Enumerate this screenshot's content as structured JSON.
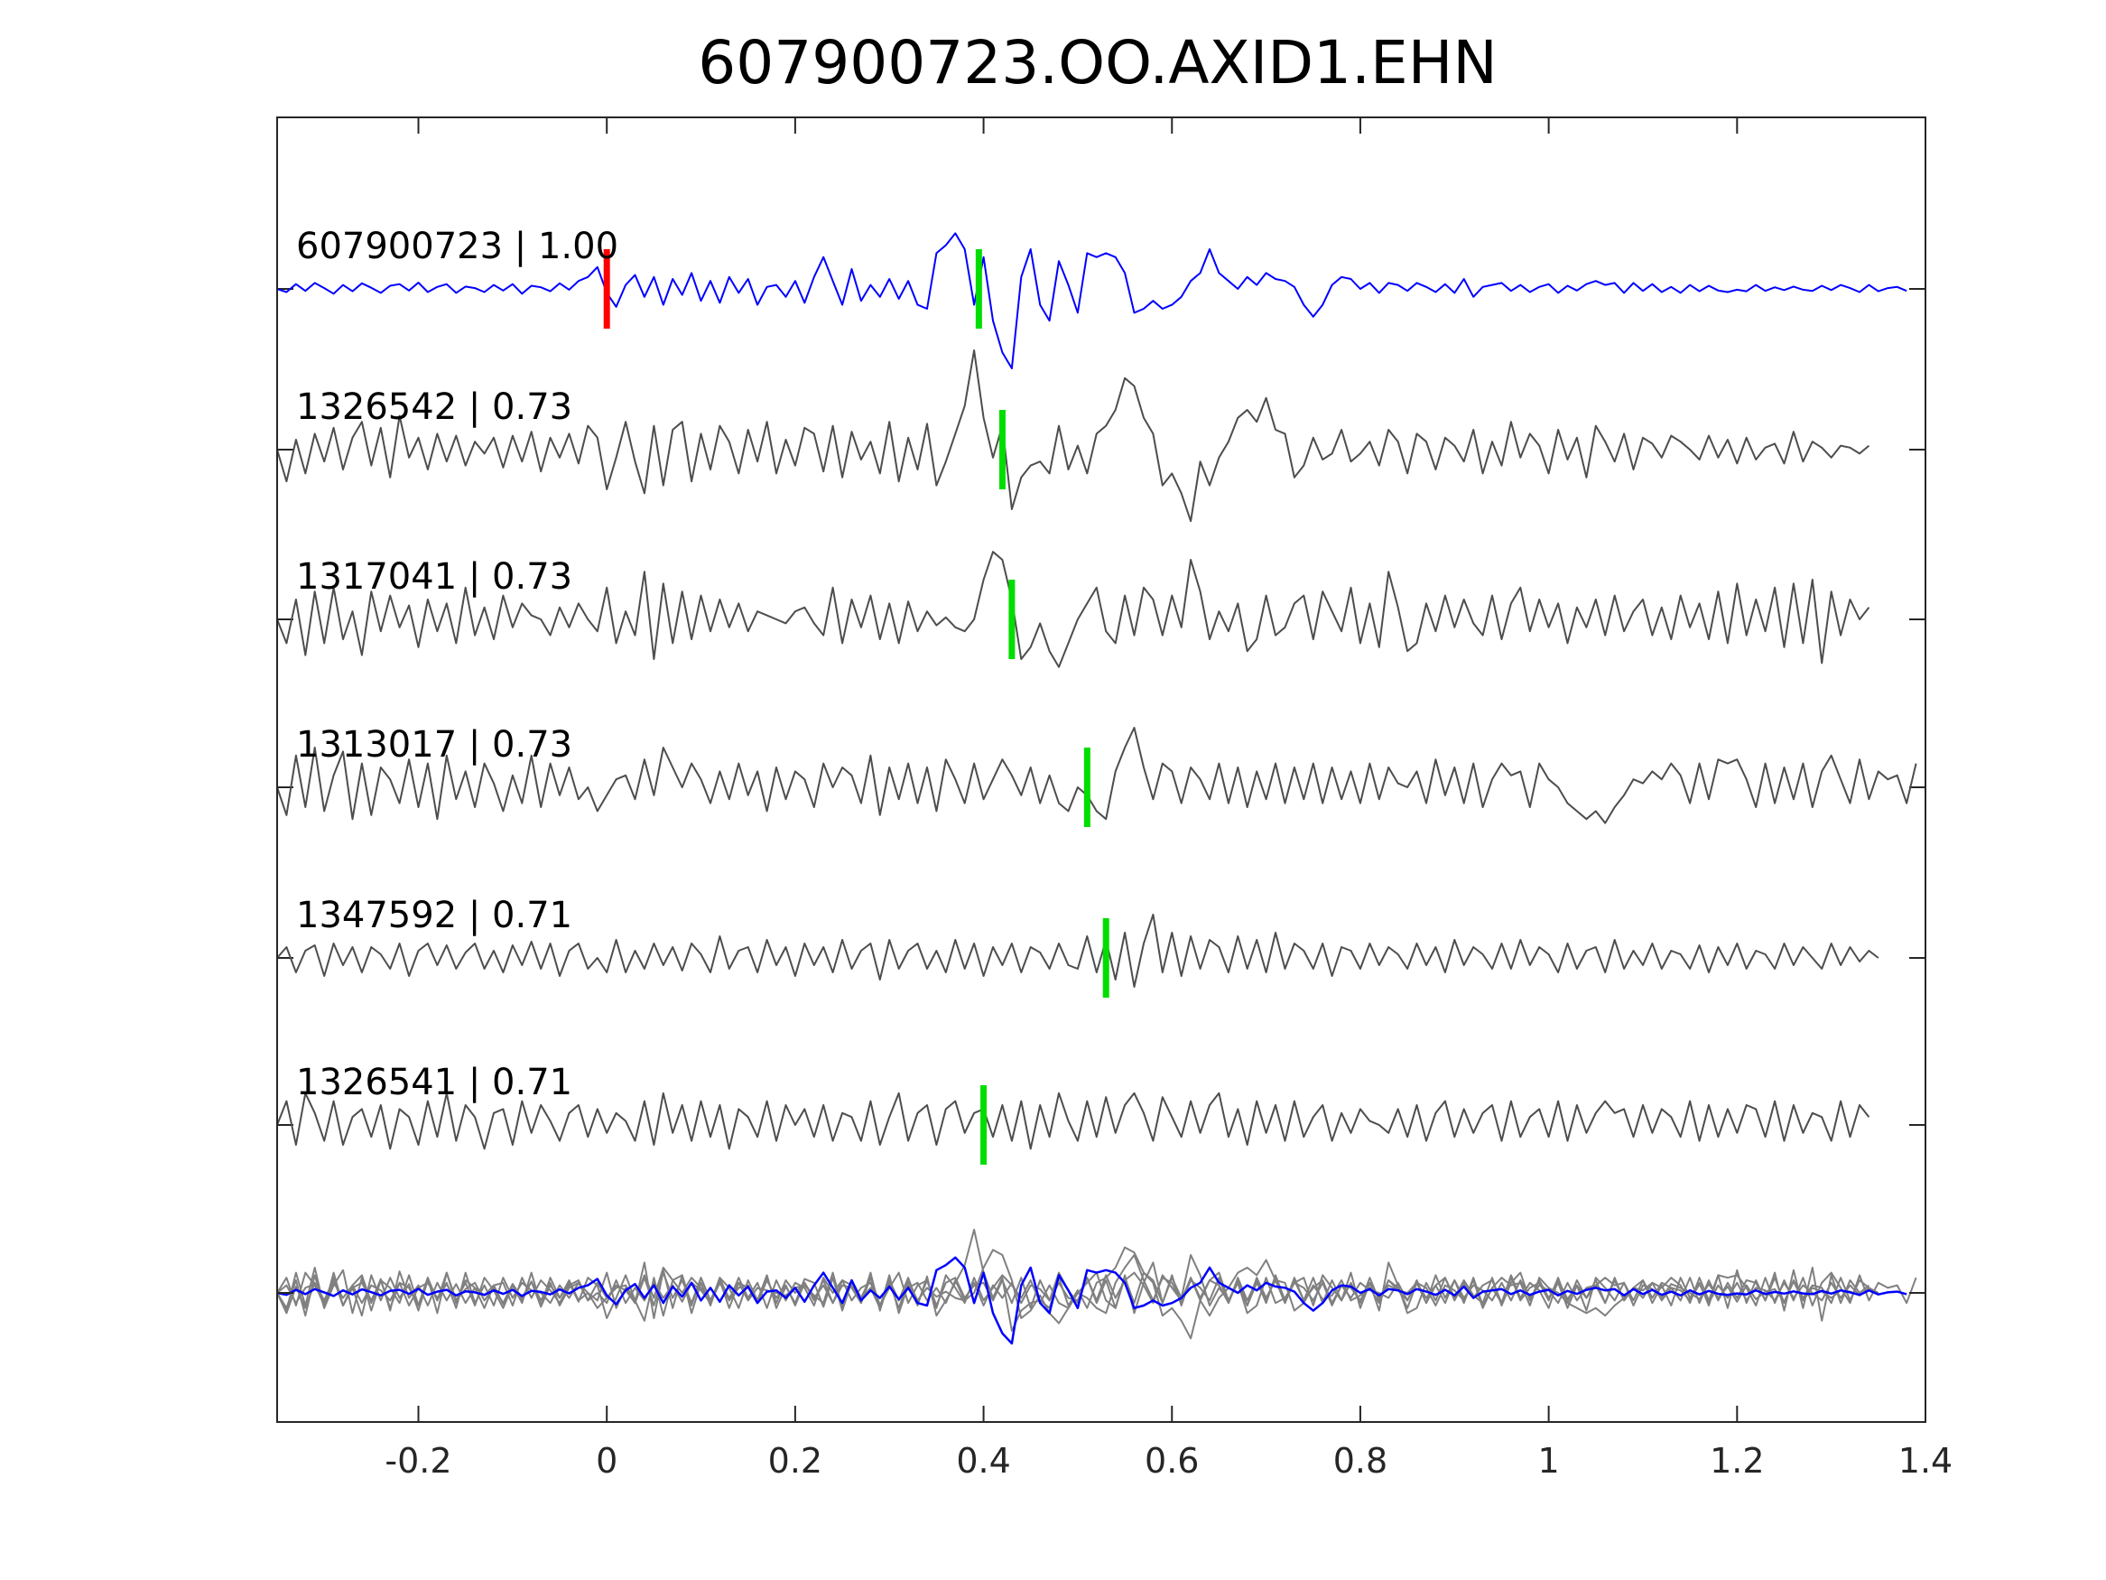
{
  "chart_data": {
    "type": "line",
    "title": "607900723.OO.AXID1.EHN",
    "xlabel": "",
    "ylabel": "",
    "xlim": [
      -0.35,
      1.4
    ],
    "x_ticks": [
      -0.2,
      0,
      0.2,
      0.4,
      0.6,
      0.8,
      1,
      1.2,
      1.4
    ],
    "x_tick_labels": [
      "-0.2",
      "0",
      "0.2",
      "0.4",
      "0.6",
      "0.8",
      "1",
      "1.2",
      "1.4"
    ],
    "grid": false,
    "legend": "none",
    "sampling_step": 0.01,
    "colors": {
      "master": "#0000ff",
      "trace": "#4d4d4d",
      "overlay": "#808080",
      "master_pick": "#ff0000",
      "match_pick": "#00dd00",
      "axes": "#262626"
    },
    "series": [
      {
        "label": "607900723 | 1.00",
        "pick_time": 0.0,
        "pick_color": "red",
        "values": [
          0.0,
          -0.08,
          0.12,
          -0.05,
          0.15,
          0.02,
          -0.12,
          0.1,
          -0.06,
          0.14,
          0.03,
          -0.1,
          0.08,
          0.12,
          -0.04,
          0.16,
          -0.08,
          0.05,
          0.12,
          -0.1,
          0.06,
          0.02,
          -0.08,
          0.1,
          -0.04,
          0.12,
          -0.12,
          0.08,
          0.04,
          -0.06,
          0.14,
          -0.02,
          0.2,
          0.3,
          0.55,
          -0.1,
          -0.45,
          0.1,
          0.35,
          -0.2,
          0.3,
          -0.4,
          0.25,
          -0.15,
          0.4,
          -0.3,
          0.2,
          -0.35,
          0.3,
          -0.1,
          0.25,
          -0.4,
          0.05,
          0.1,
          -0.2,
          0.2,
          -0.35,
          0.3,
          0.8,
          0.2,
          -0.4,
          0.5,
          -0.3,
          0.1,
          -0.2,
          0.25,
          -0.25,
          0.2,
          -0.4,
          -0.5,
          0.9,
          1.1,
          1.4,
          1.0,
          -0.4,
          0.8,
          -0.8,
          -1.6,
          -2.0,
          0.3,
          1.0,
          -0.4,
          -0.8,
          0.7,
          0.1,
          -0.6,
          0.9,
          0.8,
          0.9,
          0.8,
          0.4,
          -0.6,
          -0.5,
          -0.3,
          -0.5,
          -0.4,
          -0.2,
          0.2,
          0.4,
          1.0,
          0.4,
          0.2,
          0.0,
          0.3,
          0.1,
          0.4,
          0.25,
          0.2,
          0.05,
          -0.4,
          -0.7,
          -0.4,
          0.1,
          0.3,
          0.25,
          0.0,
          0.15,
          -0.1,
          0.15,
          0.1,
          -0.05,
          0.15,
          0.05,
          -0.08,
          0.12,
          -0.1,
          0.25,
          -0.2,
          0.05,
          0.1,
          0.15,
          -0.05,
          0.1,
          -0.08,
          0.05,
          0.12,
          -0.1,
          0.08,
          -0.04,
          0.12,
          0.2,
          0.1,
          0.15,
          -0.1,
          0.15,
          -0.05,
          0.12,
          -0.08,
          0.05,
          -0.1,
          0.1,
          -0.06,
          0.08,
          -0.04,
          -0.08,
          -0.02,
          -0.06,
          0.1,
          -0.05,
          0.04,
          -0.03,
          0.06,
          -0.02,
          -0.05,
          0.08,
          -0.03,
          0.1,
          0.02,
          -0.08,
          0.1,
          -0.06,
          0.02,
          0.05,
          -0.05
        ]
      },
      {
        "label": "1326542 | 0.73",
        "pick_time": 0.42,
        "pick_color": "green",
        "values": [
          0.0,
          -0.8,
          0.25,
          -0.6,
          0.4,
          -0.3,
          0.55,
          -0.5,
          0.3,
          0.7,
          -0.4,
          0.55,
          -0.7,
          0.85,
          -0.2,
          0.3,
          -0.5,
          0.4,
          -0.3,
          0.35,
          -0.4,
          0.2,
          -0.1,
          0.3,
          -0.45,
          0.35,
          -0.3,
          0.45,
          -0.55,
          0.3,
          -0.2,
          0.4,
          -0.35,
          0.6,
          0.3,
          -1.0,
          -0.2,
          0.7,
          -0.3,
          -1.1,
          0.6,
          -0.9,
          0.5,
          0.7,
          -0.8,
          0.4,
          -0.5,
          0.6,
          0.2,
          -0.6,
          0.5,
          -0.3,
          0.7,
          -0.6,
          0.25,
          -0.4,
          0.55,
          0.4,
          -0.55,
          0.6,
          -0.7,
          0.45,
          -0.25,
          0.2,
          -0.6,
          0.7,
          -0.8,
          0.3,
          -0.5,
          0.65,
          -0.9,
          -0.3,
          0.4,
          1.1,
          2.5,
          0.8,
          -0.2,
          0.6,
          -1.5,
          -0.7,
          -0.4,
          -0.3,
          -0.6,
          0.6,
          -0.5,
          0.1,
          -0.6,
          0.4,
          0.6,
          1.0,
          1.8,
          1.6,
          0.8,
          0.4,
          -0.9,
          -0.6,
          -1.1,
          -1.8,
          -0.3,
          -0.9,
          -0.2,
          0.2,
          0.8,
          1.0,
          0.7,
          1.3,
          0.5,
          0.4,
          -0.7,
          -0.4,
          0.3,
          -0.25,
          -0.1,
          0.5,
          -0.3,
          -0.1,
          0.2,
          -0.4,
          0.5,
          0.2,
          -0.6,
          0.4,
          0.2,
          -0.5,
          0.3,
          0.1,
          -0.3,
          0.5,
          -0.6,
          0.2,
          -0.4,
          0.7,
          -0.2,
          0.4,
          0.1,
          -0.6,
          0.5,
          -0.25,
          0.3,
          -0.7,
          0.6,
          0.2,
          -0.3,
          0.4,
          -0.5,
          0.3,
          0.15,
          -0.2,
          0.35,
          0.2,
          0.0,
          -0.25,
          0.35,
          -0.2,
          0.25,
          -0.35,
          0.3,
          -0.25,
          0.05,
          0.15,
          -0.35,
          0.45,
          -0.3,
          0.2,
          0.05,
          -0.2,
          0.1,
          0.05,
          -0.1,
          0.1
        ]
      },
      {
        "label": "1317041 | 0.73",
        "pick_time": 0.43,
        "pick_color": "green",
        "values": [
          0.0,
          -0.6,
          0.5,
          -0.9,
          0.7,
          -0.6,
          0.8,
          -0.5,
          0.2,
          -0.9,
          0.7,
          -0.3,
          0.6,
          -0.2,
          0.35,
          -0.7,
          0.5,
          -0.3,
          0.4,
          -0.6,
          0.8,
          -0.4,
          0.3,
          -0.5,
          0.6,
          -0.2,
          0.4,
          0.1,
          0.0,
          -0.4,
          0.3,
          -0.2,
          0.4,
          0.0,
          -0.3,
          0.8,
          -0.6,
          0.2,
          -0.4,
          1.2,
          -1.0,
          0.9,
          -0.6,
          0.7,
          -0.5,
          0.6,
          -0.3,
          0.5,
          -0.2,
          0.4,
          -0.3,
          0.2,
          0.1,
          0.0,
          -0.1,
          0.2,
          0.3,
          -0.1,
          -0.4,
          0.8,
          -0.6,
          0.5,
          -0.2,
          0.6,
          -0.5,
          0.4,
          -0.6,
          0.45,
          -0.3,
          0.2,
          -0.15,
          0.05,
          -0.2,
          -0.3,
          0.0,
          1.0,
          1.7,
          1.5,
          0.5,
          -1.0,
          -0.7,
          -0.1,
          -0.8,
          -1.2,
          -0.6,
          0.0,
          0.4,
          0.8,
          -0.3,
          -0.6,
          0.6,
          -0.4,
          0.8,
          0.5,
          -0.4,
          0.6,
          -0.2,
          1.5,
          0.7,
          -0.5,
          0.2,
          -0.3,
          0.4,
          -0.8,
          -0.5,
          0.6,
          -0.4,
          -0.2,
          0.4,
          0.6,
          -0.5,
          0.7,
          0.2,
          -0.3,
          0.8,
          -0.6,
          0.4,
          -0.7,
          1.2,
          0.3,
          -0.8,
          -0.6,
          0.4,
          -0.3,
          0.6,
          -0.2,
          0.5,
          -0.1,
          -0.4,
          0.6,
          -0.5,
          0.4,
          0.8,
          -0.3,
          0.5,
          -0.2,
          0.4,
          -0.6,
          0.3,
          -0.2,
          0.5,
          -0.4,
          0.6,
          -0.3,
          0.2,
          0.5,
          -0.4,
          0.3,
          -0.5,
          0.6,
          -0.2,
          0.4,
          -0.5,
          0.7,
          -0.6,
          0.9,
          -0.4,
          0.5,
          -0.3,
          0.8,
          -0.7,
          0.9,
          -0.6,
          1.0,
          -1.1,
          0.7,
          -0.4,
          0.5,
          0.0,
          0.3
        ]
      },
      {
        "label": "1313017 | 0.73",
        "pick_time": 0.51,
        "pick_color": "green",
        "values": [
          0.0,
          -0.7,
          0.8,
          -0.5,
          1.0,
          -0.6,
          0.3,
          0.9,
          -0.8,
          0.6,
          -0.7,
          0.5,
          0.2,
          -0.4,
          0.7,
          -0.5,
          0.6,
          -0.8,
          0.8,
          -0.3,
          0.4,
          -0.5,
          0.6,
          0.1,
          -0.6,
          0.3,
          -0.4,
          0.8,
          -0.5,
          0.6,
          -0.2,
          0.5,
          -0.3,
          0.0,
          -0.6,
          -0.2,
          0.2,
          0.3,
          -0.3,
          0.7,
          -0.2,
          1.0,
          0.5,
          0.0,
          0.6,
          0.2,
          -0.4,
          0.4,
          -0.3,
          0.6,
          -0.2,
          0.4,
          -0.6,
          0.5,
          -0.3,
          0.4,
          0.2,
          -0.5,
          0.6,
          0.0,
          0.5,
          0.3,
          -0.4,
          0.8,
          -0.7,
          0.5,
          -0.3,
          0.6,
          -0.4,
          0.5,
          -0.6,
          0.7,
          0.2,
          -0.4,
          0.6,
          -0.3,
          0.2,
          0.7,
          0.3,
          -0.2,
          0.5,
          -0.4,
          0.3,
          -0.4,
          -0.6,
          0.0,
          -0.2,
          -0.6,
          -0.8,
          0.4,
          1.0,
          1.5,
          0.5,
          -0.3,
          0.6,
          0.4,
          -0.4,
          0.5,
          0.2,
          -0.3,
          0.6,
          -0.4,
          0.5,
          -0.5,
          0.4,
          -0.3,
          0.6,
          -0.4,
          0.5,
          -0.3,
          0.6,
          -0.4,
          0.5,
          -0.3,
          0.4,
          -0.4,
          0.6,
          -0.3,
          0.5,
          0.1,
          0.0,
          0.4,
          -0.4,
          0.7,
          -0.2,
          0.5,
          -0.4,
          0.6,
          -0.5,
          0.2,
          0.6,
          0.3,
          0.4,
          -0.5,
          0.6,
          0.2,
          0.0,
          -0.4,
          -0.6,
          -0.8,
          -0.6,
          -0.9,
          -0.5,
          -0.2,
          0.2,
          0.1,
          0.4,
          0.2,
          0.6,
          0.3,
          -0.4,
          0.6,
          -0.3,
          0.7,
          0.6,
          0.7,
          0.2,
          -0.5,
          0.6,
          -0.4,
          0.5,
          -0.3,
          0.6,
          -0.5,
          0.4,
          0.8,
          0.2,
          -0.4,
          0.7,
          -0.3,
          0.4,
          0.2,
          0.3,
          -0.4,
          0.6
        ]
      },
      {
        "label": "1347592 | 0.71",
        "pick_time": 0.53,
        "pick_color": "green",
        "values": [
          0.0,
          0.3,
          -0.4,
          0.2,
          0.35,
          -0.5,
          0.4,
          -0.2,
          0.3,
          -0.4,
          0.3,
          0.1,
          -0.3,
          0.4,
          -0.5,
          0.2,
          0.4,
          -0.2,
          0.35,
          -0.3,
          0.15,
          0.4,
          -0.3,
          0.2,
          -0.4,
          0.35,
          -0.2,
          0.45,
          -0.3,
          0.4,
          -0.5,
          0.2,
          0.4,
          -0.3,
          0.0,
          -0.4,
          0.5,
          -0.4,
          0.2,
          -0.3,
          0.4,
          -0.2,
          0.3,
          -0.35,
          0.4,
          0.1,
          -0.4,
          0.6,
          -0.3,
          0.2,
          0.3,
          -0.4,
          0.5,
          -0.2,
          0.3,
          -0.5,
          0.4,
          -0.2,
          0.3,
          -0.4,
          0.5,
          -0.3,
          0.2,
          0.4,
          -0.6,
          0.5,
          -0.3,
          0.2,
          0.4,
          -0.3,
          0.2,
          -0.4,
          0.5,
          -0.3,
          0.4,
          -0.5,
          0.3,
          -0.2,
          0.4,
          -0.4,
          0.3,
          0.15,
          -0.3,
          0.4,
          -0.2,
          -0.3,
          0.6,
          -0.4,
          0.5,
          -0.6,
          0.7,
          -0.8,
          0.4,
          1.2,
          -0.4,
          0.7,
          -0.5,
          0.6,
          -0.3,
          0.5,
          0.3,
          -0.4,
          0.6,
          -0.3,
          0.5,
          -0.4,
          0.7,
          -0.3,
          0.4,
          0.2,
          -0.3,
          0.4,
          -0.5,
          0.3,
          0.2,
          -0.3,
          0.4,
          -0.2,
          0.3,
          0.1,
          -0.3,
          0.4,
          -0.2,
          0.3,
          -0.4,
          0.5,
          -0.2,
          0.3,
          0.1,
          -0.3,
          0.4,
          -0.3,
          0.5,
          -0.2,
          0.3,
          0.1,
          -0.4,
          0.4,
          -0.3,
          0.2,
          0.3,
          -0.4,
          0.5,
          -0.3,
          0.2,
          -0.2,
          0.4,
          -0.3,
          0.2,
          0.1,
          -0.3,
          0.35,
          -0.4,
          0.3,
          -0.2,
          0.4,
          -0.3,
          0.2,
          0.1,
          -0.3,
          0.4,
          -0.2,
          0.3,
          0.0,
          -0.3,
          0.4,
          -0.2,
          0.3,
          -0.1,
          0.2,
          0.0
        ]
      },
      {
        "label": "1326541 | 0.71",
        "pick_time": 0.4,
        "pick_color": "green",
        "values": [
          0.0,
          0.6,
          -0.5,
          0.8,
          0.3,
          -0.4,
          0.6,
          -0.5,
          0.2,
          0.4,
          -0.3,
          0.5,
          -0.6,
          0.4,
          0.2,
          -0.5,
          0.6,
          -0.3,
          0.8,
          -0.4,
          0.5,
          0.2,
          -0.6,
          0.3,
          0.4,
          -0.5,
          0.6,
          -0.2,
          0.5,
          0.1,
          -0.4,
          0.3,
          0.5,
          -0.3,
          0.4,
          -0.2,
          0.3,
          0.1,
          -0.4,
          0.6,
          -0.5,
          0.8,
          -0.2,
          0.5,
          -0.4,
          0.6,
          -0.3,
          0.5,
          -0.6,
          0.4,
          0.2,
          -0.3,
          0.6,
          -0.4,
          0.5,
          0.0,
          0.4,
          -0.3,
          0.5,
          -0.4,
          0.3,
          0.2,
          -0.4,
          0.6,
          -0.5,
          0.2,
          0.8,
          -0.4,
          0.3,
          0.5,
          -0.5,
          0.4,
          0.6,
          -0.2,
          0.3,
          0.4,
          -0.3,
          0.5,
          -0.4,
          0.6,
          -0.6,
          0.5,
          -0.3,
          0.8,
          0.1,
          -0.4,
          0.6,
          -0.3,
          0.7,
          -0.2,
          0.5,
          0.8,
          0.3,
          -0.4,
          0.7,
          0.2,
          -0.3,
          0.6,
          -0.2,
          0.5,
          0.8,
          -0.3,
          0.4,
          -0.5,
          0.6,
          -0.2,
          0.5,
          -0.4,
          0.6,
          -0.3,
          0.2,
          0.5,
          -0.4,
          0.3,
          -0.2,
          0.4,
          0.1,
          0.0,
          -0.2,
          0.4,
          -0.3,
          0.5,
          -0.4,
          0.3,
          0.6,
          -0.3,
          0.4,
          -0.2,
          0.3,
          0.5,
          -0.4,
          0.6,
          -0.3,
          0.2,
          0.4,
          -0.3,
          0.6,
          -0.4,
          0.5,
          -0.2,
          0.3,
          0.6,
          0.3,
          0.4,
          -0.3,
          0.5,
          -0.2,
          0.4,
          0.2,
          -0.3,
          0.6,
          -0.4,
          0.5,
          -0.3,
          0.4,
          -0.2,
          0.5,
          0.4,
          -0.3,
          0.6,
          -0.4,
          0.5,
          -0.2,
          0.3,
          0.2,
          -0.4,
          0.6,
          -0.3,
          0.5,
          0.2
        ]
      }
    ]
  }
}
